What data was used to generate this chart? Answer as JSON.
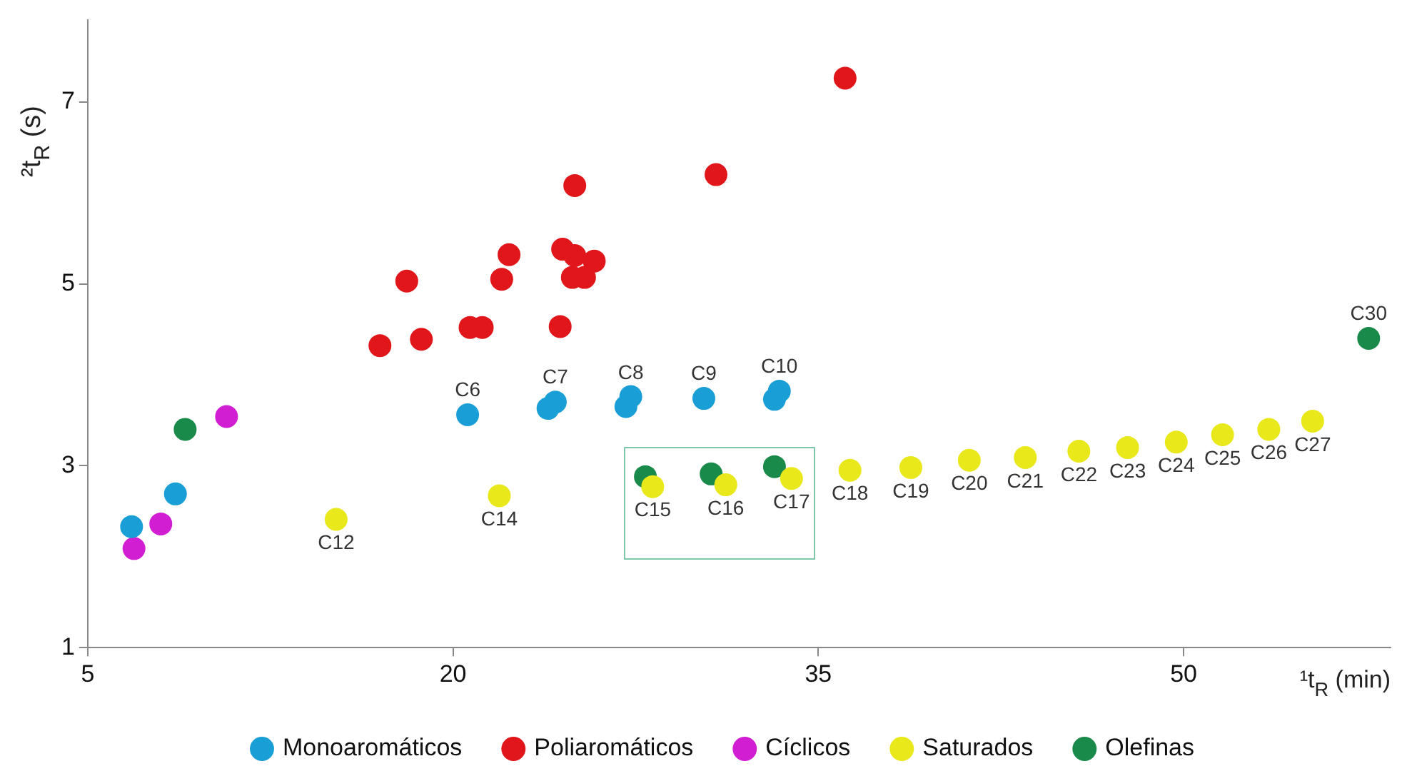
{
  "chart_data": {
    "type": "scatter",
    "xlabel": "¹t$_{R}$ (min)",
    "ylabel": "²t$_{R}$ (s)",
    "xlim": [
      5,
      58.5
    ],
    "ylim": [
      1,
      7.9
    ],
    "xticks": [
      5,
      20,
      35,
      50
    ],
    "yticks": [
      1,
      3,
      5,
      7
    ],
    "grid": false,
    "legend": "bottom",
    "marker": "circle",
    "series": [
      {
        "name": "Monoaromáticos",
        "color": "#1a9ed6",
        "x": [
          6.8,
          8.6,
          20.6,
          23.9,
          24.2,
          27.1,
          27.3,
          30.3,
          33.2,
          33.4
        ],
        "values": [
          2.33,
          2.69,
          3.56,
          3.63,
          3.7,
          3.65,
          3.76,
          3.74,
          3.73,
          3.82
        ]
      },
      {
        "name": "Poliaromáticos",
        "color": "#e0161b",
        "x": [
          17.0,
          18.7,
          18.1,
          20.7,
          21.2,
          22.0,
          22.3,
          24.5,
          25.0,
          25.8,
          24.9,
          25.4,
          24.4,
          25.0,
          30.8,
          36.1
        ],
        "values": [
          4.32,
          4.39,
          5.03,
          4.52,
          4.52,
          5.05,
          5.32,
          5.38,
          5.31,
          5.25,
          5.07,
          5.07,
          4.53,
          6.08,
          6.2,
          7.26
        ]
      },
      {
        "name": "Cíclicos",
        "color": "#d21ed2",
        "x": [
          6.9,
          8.0,
          10.7
        ],
        "values": [
          2.09,
          2.36,
          3.54
        ]
      },
      {
        "name": "Saturados",
        "color": "#e8e81a",
        "x": [
          15.2,
          21.9,
          28.2,
          31.2,
          33.9,
          36.3,
          38.8,
          41.2,
          43.5,
          45.7,
          47.7,
          49.7,
          51.6,
          53.5,
          55.3
        ],
        "values": [
          2.41,
          2.67,
          2.77,
          2.79,
          2.86,
          2.95,
          2.98,
          3.06,
          3.09,
          3.16,
          3.2,
          3.26,
          3.34,
          3.4,
          3.49
        ]
      },
      {
        "name": "Olefinas",
        "color": "#1a8a4a",
        "x": [
          9.0,
          27.9,
          30.6,
          33.2,
          57.6
        ],
        "values": [
          3.4,
          2.88,
          2.91,
          2.99,
          4.4
        ]
      }
    ],
    "annotations": [
      {
        "text": "C6",
        "x": 20.6,
        "y": 3.56
      },
      {
        "text": "C7",
        "x": 24.2,
        "y": 3.7
      },
      {
        "text": "C8",
        "x": 27.3,
        "y": 3.75
      },
      {
        "text": "C9",
        "x": 30.3,
        "y": 3.74
      },
      {
        "text": "C10",
        "x": 33.4,
        "y": 3.82
      },
      {
        "text": "C12",
        "x": 15.2,
        "y": 2.41
      },
      {
        "text": "C14",
        "x": 21.9,
        "y": 2.67
      },
      {
        "text": "C15",
        "x": 28.2,
        "y": 2.77
      },
      {
        "text": "C16",
        "x": 31.2,
        "y": 2.79
      },
      {
        "text": "C17",
        "x": 33.9,
        "y": 2.86
      },
      {
        "text": "C18",
        "x": 36.3,
        "y": 2.95
      },
      {
        "text": "C19",
        "x": 38.8,
        "y": 2.98
      },
      {
        "text": "C20",
        "x": 41.2,
        "y": 3.06
      },
      {
        "text": "C21",
        "x": 43.5,
        "y": 3.09
      },
      {
        "text": "C22",
        "x": 45.7,
        "y": 3.16
      },
      {
        "text": "C23",
        "x": 47.7,
        "y": 3.2
      },
      {
        "text": "C24",
        "x": 49.7,
        "y": 3.26
      },
      {
        "text": "C25",
        "x": 51.6,
        "y": 3.34
      },
      {
        "text": "C26",
        "x": 53.5,
        "y": 3.4
      },
      {
        "text": "C27",
        "x": 55.3,
        "y": 3.49
      },
      {
        "text": "C30",
        "x": 57.6,
        "y": 4.4
      }
    ]
  }
}
